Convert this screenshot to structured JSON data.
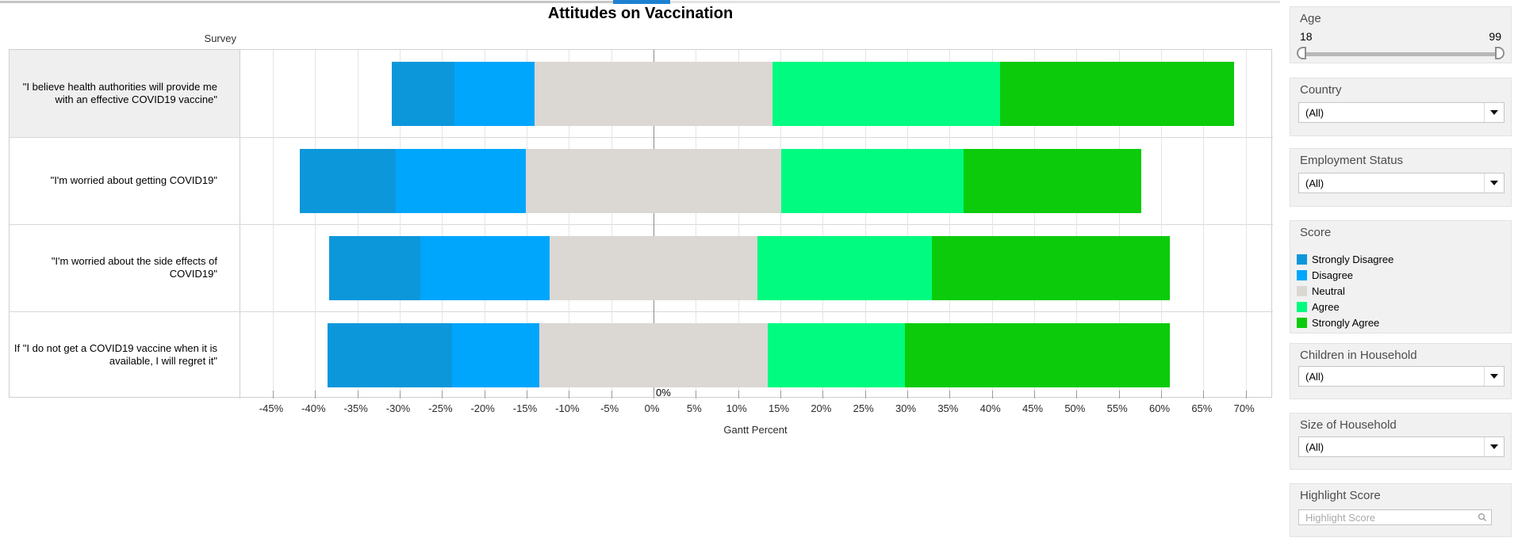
{
  "chart": {
    "row_axis_title": "Survey",
    "xlabel": "Gantt Percent",
    "zero_annotation": "0%"
  },
  "chart_data": {
    "type": "diverging_stacked_bar",
    "title": "Attitudes on Vaccination",
    "orientation": "horizontal",
    "row_axis_title": "Survey",
    "x_axis_label": "Gantt Percent",
    "categories": [
      "\"I believe health authorities will provide me with an effective COVID19 vaccine\"",
      "\"I'm worried about getting COVID19\"",
      "\"I'm worried about the side effects of COVID19\"",
      "If \"I do not get a COVID19 vaccine when it is available, I will regret it\""
    ],
    "series": [
      {
        "name": "Strongly Disagree",
        "color": "#0d97db",
        "values": [
          7.4,
          11.3,
          10.8,
          14.7
        ]
      },
      {
        "name": "Disagree",
        "color": "#00a6fc",
        "values": [
          9.5,
          15.4,
          15.3,
          10.3
        ]
      },
      {
        "name": "Neutral",
        "color": "#dbd7d3",
        "values": [
          28.1,
          30.2,
          24.5,
          27.0
        ]
      },
      {
        "name": "Agree",
        "color": "#00fb80",
        "values": [
          26.9,
          21.6,
          20.7,
          16.2
        ]
      },
      {
        "name": "Strongly Agree",
        "color": "#0bcb0b",
        "values": [
          27.7,
          21.0,
          28.1,
          31.3
        ]
      }
    ],
    "layout_note": "Neutral segment centered on 0%; bar start = -(strongly_disagree + disagree + neutral/2)",
    "x_tick_percents": [
      -45,
      -40,
      -35,
      -30,
      -25,
      -20,
      -15,
      -10,
      -5,
      0,
      5,
      10,
      15,
      20,
      25,
      30,
      35,
      40,
      45,
      50,
      55,
      60,
      65,
      70
    ],
    "xlim": [
      -48,
      74.5
    ],
    "grid": true,
    "zero_line": true
  },
  "scrollbar": {
    "thumb_color": "#1e81d2",
    "track_left_color": "#c5c5c5",
    "track_right_color": "#e3e3e3"
  },
  "sidebar": {
    "age": {
      "title": "Age",
      "min": "18",
      "max": "99"
    },
    "country": {
      "title": "Country",
      "value": "(All)"
    },
    "employment": {
      "title": "Employment Status",
      "value": "(All)"
    },
    "score_legend": {
      "title": "Score",
      "items": [
        {
          "label": "Strongly Disagree",
          "color": "#0d97db"
        },
        {
          "label": "Disagree",
          "color": "#00a6fc"
        },
        {
          "label": "Neutral",
          "color": "#dbd7d3"
        },
        {
          "label": "Agree",
          "color": "#00fb80"
        },
        {
          "label": "Strongly Agree",
          "color": "#0bcb0b"
        }
      ]
    },
    "children": {
      "title": "Children in Household",
      "value": "(All)"
    },
    "household": {
      "title": "Size of Household",
      "value": "(All)"
    },
    "highlight": {
      "title": "Highlight Score",
      "placeholder": "Highlight Score"
    }
  }
}
